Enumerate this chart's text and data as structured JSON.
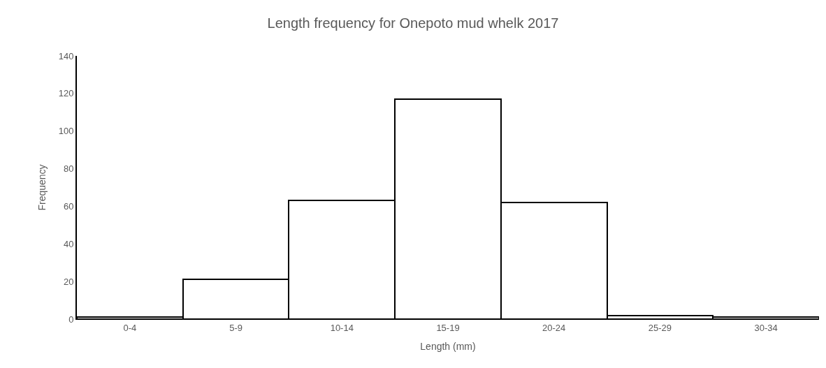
{
  "chart_data": {
    "type": "bar",
    "title": "Length frequency for Onepoto mud whelk 2017",
    "xlabel": "Length (mm)",
    "ylabel": "Frequency",
    "categories": [
      "0-4",
      "5-9",
      "10-14",
      "15-19",
      "20-24",
      "25-29",
      "30-34"
    ],
    "values": [
      1,
      21,
      63,
      117,
      62,
      2,
      1
    ],
    "color": "#ffffff",
    "ylim": [
      0,
      140
    ],
    "yticks": [
      0,
      20,
      40,
      60,
      80,
      100,
      120,
      140
    ],
    "grid": false,
    "legend": false
  }
}
